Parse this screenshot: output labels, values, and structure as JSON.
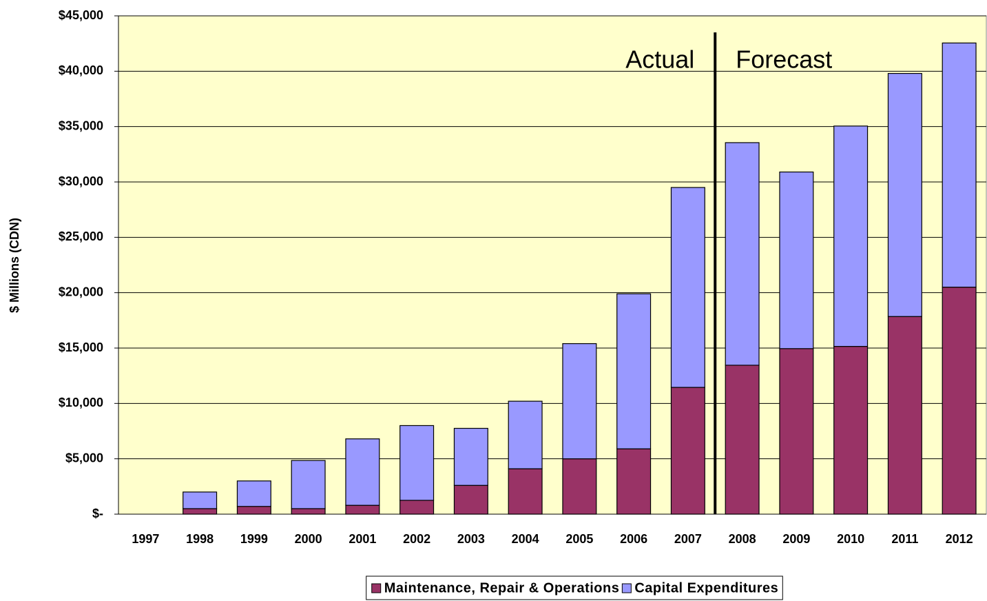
{
  "chart_data": {
    "type": "stacked_bar",
    "y_label": "$ Millions (CDN)",
    "annotations": [
      "Actual",
      "Forecast"
    ],
    "categories": [
      "1997",
      "1998",
      "1999",
      "2000",
      "2001",
      "2002",
      "2003",
      "2004",
      "2005",
      "2006",
      "2007",
      "2008",
      "2009",
      "2010",
      "2011",
      "2012"
    ],
    "series": [
      {
        "name": "Maintenance, Repair & Operations",
        "color": "#993366",
        "values": [
          0,
          500,
          700,
          500,
          800,
          1250,
          2600,
          4100,
          5000,
          5900,
          11450,
          13450,
          14950,
          15150,
          17850,
          20500
        ]
      },
      {
        "name": "Capital Expenditures",
        "color": "#9999ff",
        "values": [
          0,
          1500,
          2300,
          4350,
          6000,
          6750,
          5150,
          6100,
          10400,
          14000,
          18050,
          20100,
          15950,
          19900,
          21950,
          22050
        ]
      }
    ],
    "ylim": [
      0,
      45000
    ],
    "yticks": [
      {
        "value": 0,
        "label": "$-"
      },
      {
        "value": 5000,
        "label": "$5,000"
      },
      {
        "value": 10000,
        "label": "$10,000"
      },
      {
        "value": 15000,
        "label": "$15,000"
      },
      {
        "value": 20000,
        "label": "$20,000"
      },
      {
        "value": 25000,
        "label": "$25,000"
      },
      {
        "value": 30000,
        "label": "$30,000"
      },
      {
        "value": 35000,
        "label": "$35,000"
      },
      {
        "value": 40000,
        "label": "$40,000"
      },
      {
        "value": 45000,
        "label": "$45,000"
      }
    ],
    "grid": true,
    "plot_background": "#ffffcc",
    "legend": "bottom"
  }
}
